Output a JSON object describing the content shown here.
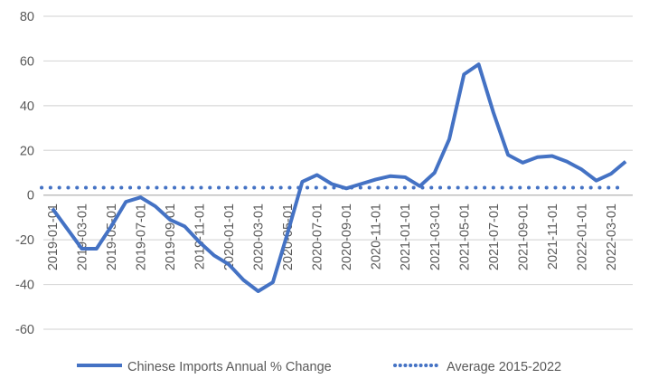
{
  "chart_data": {
    "type": "line",
    "title": "",
    "xlabel": "",
    "ylabel": "",
    "ylim": [
      -60,
      80
    ],
    "yticks": [
      80,
      60,
      40,
      20,
      0,
      -20,
      -40,
      -60
    ],
    "grid": true,
    "legend_position": "bottom",
    "x": [
      "2019-01-01",
      "2019-02-01",
      "2019-03-01",
      "2019-04-01",
      "2019-05-01",
      "2019-06-01",
      "2019-07-01",
      "2019-08-01",
      "2019-09-01",
      "2019-10-01",
      "2019-11-01",
      "2019-12-01",
      "2020-01-01",
      "2020-02-01",
      "2020-03-01",
      "2020-04-01",
      "2020-05-01",
      "2020-06-01",
      "2020-07-01",
      "2020-08-01",
      "2020-09-01",
      "2020-10-01",
      "2020-11-01",
      "2020-12-01",
      "2021-01-01",
      "2021-02-01",
      "2021-03-01",
      "2021-04-01",
      "2021-05-01",
      "2021-06-01",
      "2021-07-01",
      "2021-08-01",
      "2021-09-01",
      "2021-10-01",
      "2021-11-01",
      "2021-12-01",
      "2022-01-01",
      "2022-02-01",
      "2022-03-01",
      "2022-04-01"
    ],
    "x_tick_labels": [
      "2019-01-01",
      "2019-03-01",
      "2019-05-01",
      "2019-07-01",
      "2019-09-01",
      "2019-11-01",
      "2020-01-01",
      "2020-03-01",
      "2020-05-01",
      "2020-07-01",
      "2020-09-01",
      "2020-11-01",
      "2021-01-01",
      "2021-03-01",
      "2021-05-01",
      "2021-07-01",
      "2021-09-01",
      "2021-11-01",
      "2022-01-01",
      "2022-03-01"
    ],
    "series": [
      {
        "name": "Chinese Imports Annual % Change",
        "style": "solid",
        "color": "#4472C4",
        "values": [
          -6,
          -15,
          -24,
          -24,
          -14,
          -3,
          -1,
          -5,
          -11,
          -14,
          -21,
          -27,
          -31,
          -38,
          -43,
          -39,
          -17,
          6,
          9,
          5,
          3,
          5,
          7,
          8.5,
          8,
          4,
          10,
          25,
          54,
          58.5,
          37,
          18,
          14.5,
          17,
          17.5,
          15,
          11.5,
          6.5,
          9.5,
          15
        ]
      },
      {
        "name": "Average 2015-2022",
        "style": "dotted",
        "color": "#4472C4",
        "value": 3.3
      }
    ]
  }
}
